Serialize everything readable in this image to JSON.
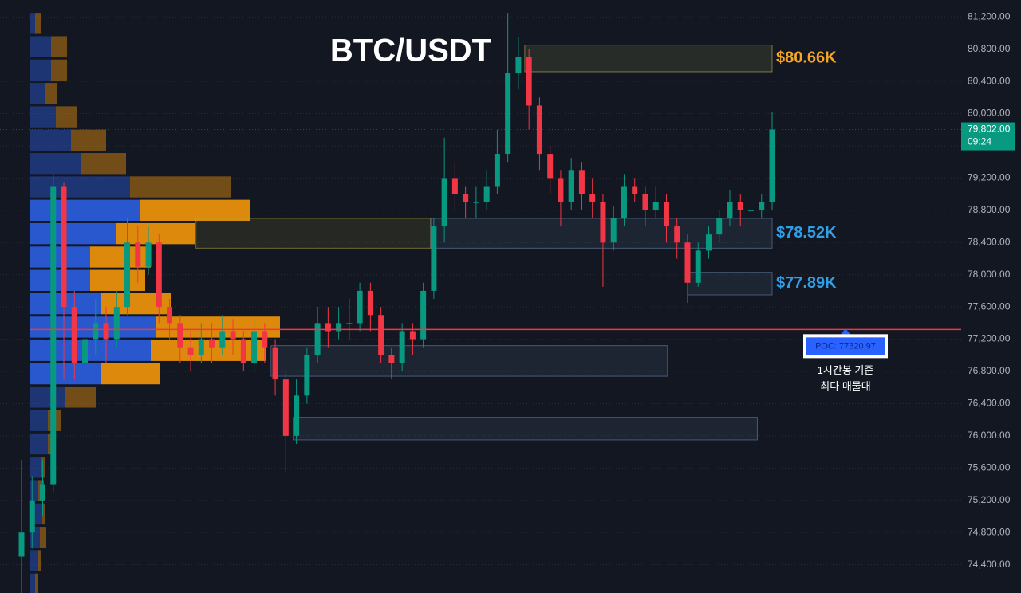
{
  "chart_data": {
    "type": "candlestick",
    "title": "BTC/USDT",
    "ylim": [
      74050,
      81410
    ],
    "yticks": [
      {
        "value": 74400,
        "label": "74,400.00"
      },
      {
        "value": 74800,
        "label": "74,800.00"
      },
      {
        "value": 75200,
        "label": "75,200.00"
      },
      {
        "value": 75600,
        "label": "75,600.00"
      },
      {
        "value": 76000,
        "label": "76,000.00"
      },
      {
        "value": 76400,
        "label": "76,400.00"
      },
      {
        "value": 76800,
        "label": "76,800.00"
      },
      {
        "value": 77200,
        "label": "77,200.00"
      },
      {
        "value": 77600,
        "label": "77,600.00"
      },
      {
        "value": 78000,
        "label": "78,000.00"
      },
      {
        "value": 78400,
        "label": "78,400.00"
      },
      {
        "value": 78800,
        "label": "78,800.00"
      },
      {
        "value": 79200,
        "label": "79,200.00"
      },
      {
        "value": 79600,
        "label": "79,600.00"
      },
      {
        "value": 80000,
        "label": "80,000.00"
      },
      {
        "value": 80400,
        "label": "80,400.00"
      },
      {
        "value": 80800,
        "label": "80,800.00"
      },
      {
        "value": 81200,
        "label": "81,200.00"
      }
    ],
    "grid": true,
    "up_color": "#089981",
    "down_color": "#f23645",
    "open": [
      74500,
      74800,
      75200,
      75400,
      79100,
      77600,
      76900,
      77200,
      77400,
      77200,
      77600,
      78400,
      78100,
      78400,
      77600,
      77400,
      77100,
      77000,
      77200,
      77100,
      77300,
      77200,
      76900,
      77300,
      77100,
      76700,
      76000,
      76500,
      77000,
      77400,
      77300,
      77400,
      77400,
      77800,
      77500,
      77000,
      76900,
      77300,
      77200,
      77800,
      78600,
      79200,
      79000,
      78900,
      78900,
      79100,
      79500,
      80500,
      80700,
      80100,
      79500,
      79200,
      78900,
      79300,
      79000,
      78900,
      78400,
      78700,
      79100,
      79000,
      78800,
      78900,
      78600,
      78400,
      77900,
      78300,
      78500,
      78700,
      78900,
      78800,
      78800,
      78900
    ],
    "high": [
      75700,
      75500,
      75700,
      79250,
      79150,
      77800,
      77500,
      77700,
      77600,
      77800,
      78700,
      78600,
      78600,
      78500,
      77700,
      77500,
      77300,
      77400,
      77400,
      77500,
      77450,
      77300,
      77450,
      77400,
      77200,
      76800,
      76700,
      77100,
      77600,
      77600,
      77600,
      77700,
      77900,
      77900,
      77600,
      77100,
      77400,
      77400,
      77900,
      78700,
      79700,
      79400,
      79100,
      79100,
      79300,
      79800,
      81250,
      80950,
      80800,
      80200,
      79600,
      79300,
      79450,
      79400,
      79200,
      79000,
      78850,
      79250,
      79200,
      79100,
      79100,
      79000,
      78700,
      78500,
      78400,
      78600,
      78800,
      79050,
      79000,
      78950,
      79000,
      80020
    ],
    "low": [
      74000,
      74600,
      75000,
      75300,
      76700,
      76700,
      76800,
      77000,
      76900,
      77100,
      77500,
      77900,
      78000,
      77400,
      77200,
      76900,
      76800,
      76900,
      76900,
      77000,
      77000,
      76800,
      76800,
      76900,
      76500,
      75550,
      75900,
      76400,
      76900,
      77100,
      77200,
      77200,
      77300,
      77300,
      76900,
      76700,
      76800,
      77000,
      77100,
      77700,
      78400,
      78800,
      78700,
      78700,
      78800,
      79000,
      79400,
      80300,
      79800,
      79300,
      79000,
      78600,
      78800,
      78800,
      78700,
      77850,
      78300,
      78600,
      78900,
      78600,
      78700,
      78400,
      78200,
      77650,
      77850,
      78200,
      78400,
      78600,
      78600,
      78600,
      78700,
      78800
    ],
    "close": [
      74800,
      75200,
      75400,
      79100,
      77600,
      76900,
      77200,
      77400,
      77200,
      77600,
      78400,
      78100,
      78400,
      77600,
      77400,
      77100,
      77000,
      77200,
      77100,
      77300,
      77200,
      76900,
      77300,
      77100,
      76700,
      76000,
      76500,
      77000,
      77400,
      77300,
      77400,
      77400,
      77800,
      77500,
      77000,
      76900,
      77300,
      77200,
      77800,
      78600,
      79200,
      79000,
      78900,
      78900,
      79100,
      79500,
      80500,
      80700,
      80100,
      79500,
      79200,
      78900,
      79300,
      79000,
      78900,
      78400,
      78700,
      79100,
      79000,
      78800,
      78900,
      78600,
      78400,
      77900,
      78300,
      78500,
      78700,
      78900,
      78800,
      78800,
      78900,
      79802
    ],
    "volume_profile": {
      "levels": [
        81120,
        80830,
        80540,
        80250,
        79960,
        79670,
        79380,
        79090,
        78800,
        78510,
        78220,
        77930,
        77640,
        77350,
        77060,
        76770,
        76480,
        76190,
        75900,
        75610,
        75320,
        75030,
        74740,
        74450,
        74160
      ],
      "buy": [
        6,
        26,
        26,
        19,
        32,
        51,
        63,
        125,
        138,
        107,
        75,
        75,
        88,
        157,
        151,
        88,
        44,
        22,
        22,
        13,
        10,
        15,
        12,
        10,
        6
      ],
      "sell": [
        8,
        20,
        20,
        14,
        26,
        44,
        57,
        126,
        138,
        100,
        76,
        69,
        88,
        156,
        144,
        75,
        38,
        16,
        10,
        5,
        7,
        4,
        8,
        4,
        4
      ],
      "buy_color": "#2a5bd7",
      "sell_color": "#e8900c",
      "value_area": [
        76620,
        78950
      ]
    },
    "zones": [
      {
        "start": 47.6,
        "end": 71,
        "low": 80520,
        "high": 80850,
        "color": "#c9c35a",
        "label": "$80.66K",
        "label_color": "#f5a623"
      },
      {
        "start": 16.5,
        "end": 38.7,
        "low": 78330,
        "high": 78700,
        "color": "#b8a83a"
      },
      {
        "start": 38.7,
        "end": 71,
        "low": 78330,
        "high": 78700,
        "color": "#6d8cb8",
        "label": "$78.52K",
        "label_color": "#2f9fe8"
      },
      {
        "start": 63,
        "end": 71,
        "low": 77750,
        "high": 78030,
        "color": "#6d8cb8",
        "label": "$77.89K",
        "label_color": "#2f9fe8"
      },
      {
        "start": 23.6,
        "end": 61.1,
        "low": 76740,
        "high": 77120,
        "color": "#6d8cb8"
      },
      {
        "start": 25.7,
        "end": 69.6,
        "low": 75950,
        "high": 76230,
        "color": "#6d8cb8"
      }
    ],
    "poc": {
      "value": 77320.97,
      "label": "POC: 77320.97",
      "color": "#f23645",
      "note": [
        "1시간봉 기준",
        "최다 매물대"
      ]
    },
    "last_price": {
      "value": 79802,
      "label": "79,802.00",
      "countdown": "09:24",
      "color": "#089981"
    }
  }
}
